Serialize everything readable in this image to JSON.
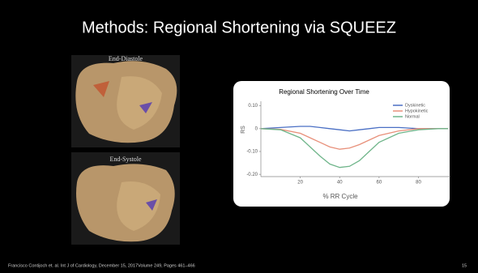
{
  "slide": {
    "title": "Methods: Regional Shortening via SQUEEZ",
    "image_labels": [
      "End-Diastole",
      "End-Systole"
    ],
    "footer": "Francisco Contijoch et. al.  Int J of Cardiology, December 15, 2017Volume 249, Pages 461–466",
    "page_number": "15"
  },
  "chart_data": {
    "type": "line",
    "title": "Regional Shortening Over Time",
    "x_label": "% RR Cycle",
    "y_label": "RS",
    "x": [
      0,
      10,
      20,
      25,
      30,
      35,
      40,
      45,
      50,
      55,
      60,
      70,
      80,
      90,
      95
    ],
    "series": [
      {
        "name": "Dyskinetic",
        "color": "#4a6fc4",
        "values": [
          0,
          0.005,
          0.01,
          0.01,
          0.005,
          0,
          -0.005,
          -0.01,
          -0.005,
          0,
          0.005,
          0.005,
          0,
          0,
          0
        ]
      },
      {
        "name": "Hypokinetic",
        "color": "#e8907a",
        "values": [
          0,
          -0.003,
          -0.02,
          -0.04,
          -0.06,
          -0.08,
          -0.09,
          -0.085,
          -0.07,
          -0.05,
          -0.03,
          -0.01,
          0,
          0,
          0
        ]
      },
      {
        "name": "Normal",
        "color": "#6fb58a",
        "values": [
          0,
          -0.005,
          -0.04,
          -0.08,
          -0.12,
          -0.155,
          -0.17,
          -0.165,
          -0.14,
          -0.1,
          -0.06,
          -0.02,
          -0.005,
          0,
          0
        ]
      }
    ],
    "xlim": [
      0,
      95
    ],
    "xticks": [
      20,
      40,
      60,
      80
    ],
    "ylim": [
      -0.21,
      0.12
    ],
    "yticks": [
      {
        "value": 0.1,
        "label": "0.10"
      },
      0,
      {
        "value": -0.1,
        "label": "-0.10"
      },
      {
        "value": -0.2,
        "label": "-0.20"
      }
    ],
    "legend": "upper right"
  }
}
